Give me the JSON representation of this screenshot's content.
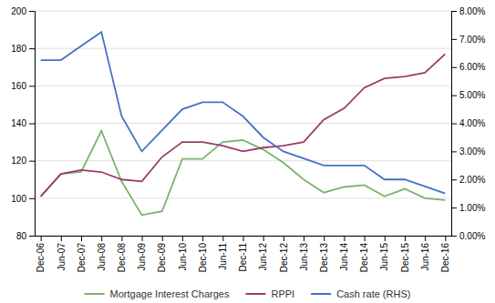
{
  "chart_data": {
    "type": "line",
    "categories": [
      "Dec-06",
      "Jun-07",
      "Dec-07",
      "Jun-08",
      "Dec-08",
      "Jun-09",
      "Dec-09",
      "Jun-10",
      "Dec-10",
      "Jun-11",
      "Dec-11",
      "Jun-12",
      "Dec-12",
      "Jun-13",
      "Dec-13",
      "Jun-14",
      "Dec-14",
      "Jun-15",
      "Dec-15",
      "Jun-16",
      "Dec-16"
    ],
    "series": [
      {
        "name": "Mortgage Interest Charges",
        "color": "#7CB36B",
        "values": [
          101,
          113,
          114,
          136,
          109,
          91,
          93,
          121,
          121,
          130,
          131,
          126,
          119,
          110,
          103,
          106,
          107,
          101,
          105,
          100,
          99
        ]
      },
      {
        "name": "RPPI",
        "color": "#9B3B6A",
        "values": [
          101,
          113,
          115,
          114,
          110,
          109,
          122,
          130,
          130,
          128,
          125,
          127,
          128,
          130,
          142,
          148,
          159,
          164,
          165,
          167,
          177
        ]
      },
      {
        "name": "Cash rate (RHS)",
        "color": "#4472C4",
        "axis": "y2",
        "values": [
          0.0625,
          0.0625,
          0.0675,
          0.0725,
          0.0425,
          0.03,
          0.0375,
          0.045,
          0.0475,
          0.0475,
          0.0425,
          0.035,
          0.03,
          0.0275,
          0.025,
          0.025,
          0.025,
          0.02,
          0.02,
          0.0175,
          0.015
        ]
      }
    ],
    "ylim": [
      80,
      200
    ],
    "yticks": [
      80,
      100,
      120,
      140,
      160,
      180,
      200
    ],
    "y2lim": [
      0,
      0.08
    ],
    "y2ticks": [
      {
        "value": 0,
        "label": "0.00%"
      },
      {
        "value": 0.01,
        "label": "1.00%"
      },
      {
        "value": 0.02,
        "label": "2.00%"
      },
      {
        "value": 0.03,
        "label": "3.00%"
      },
      {
        "value": 0.04,
        "label": "4.00%"
      },
      {
        "value": 0.05,
        "label": "5.00%"
      },
      {
        "value": 0.06,
        "label": "6.00%"
      },
      {
        "value": 0.07,
        "label": "7.00%"
      },
      {
        "value": 0.08,
        "label": "8.00%"
      }
    ],
    "grid": true,
    "legend": "bottom"
  }
}
